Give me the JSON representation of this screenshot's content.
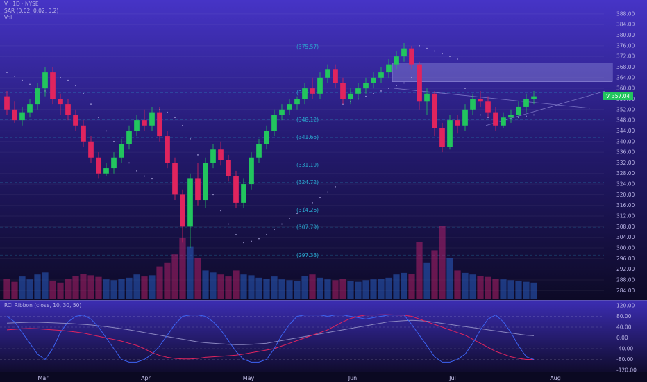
{
  "header": {
    "symbol_line": "V · 1D · NYSE",
    "sar_line": "SAR (0.02, 0.02, 0.2)",
    "vol_line": "Vol",
    "rci_line": "RCI Ribbon (close, 10, 30, 50)"
  },
  "price_badge": {
    "prefix": "V",
    "value": "357.04"
  },
  "colors": {
    "up": "#22c55e",
    "down": "#e0245e",
    "background_top": "#4a36c9",
    "background_bottom": "#0b0922",
    "fib": "#2aa9d0",
    "sar": "#b7b3e8",
    "zone": "#8a86d6",
    "rci_short": "#3d63f2",
    "rci_mid": "#e0245e",
    "rci_long": "#8a86c0"
  },
  "chart_data": {
    "type": "candlestick",
    "series": [
      {
        "name": "price",
        "values": [
          [
            357,
            359,
            350,
            352
          ],
          [
            352,
            355,
            347,
            348
          ],
          [
            348,
            353,
            346,
            351
          ],
          [
            351,
            356,
            349,
            354
          ],
          [
            354,
            362,
            352,
            360
          ],
          [
            360,
            368,
            357,
            366
          ],
          [
            366,
            368,
            354,
            356
          ],
          [
            356,
            358,
            350,
            354
          ],
          [
            354,
            356,
            348,
            350
          ],
          [
            350,
            352,
            344,
            346
          ],
          [
            346,
            348,
            338,
            340
          ],
          [
            340,
            342,
            332,
            334
          ],
          [
            334,
            336,
            326,
            328
          ],
          [
            328,
            332,
            327,
            330
          ],
          [
            330,
            336,
            328,
            334
          ],
          [
            334,
            341,
            332,
            339
          ],
          [
            339,
            346,
            337,
            344
          ],
          [
            344,
            350,
            342,
            348
          ],
          [
            348,
            352,
            344,
            346
          ],
          [
            346,
            353,
            344,
            351
          ],
          [
            351,
            353,
            340,
            342
          ],
          [
            342,
            344,
            330,
            332
          ],
          [
            332,
            334,
            318,
            320
          ],
          [
            320,
            322,
            302,
            308
          ],
          [
            308,
            328,
            300,
            326
          ],
          [
            326,
            332,
            316,
            318
          ],
          [
            318,
            334,
            315,
            332
          ],
          [
            332,
            339,
            330,
            337
          ],
          [
            337,
            340,
            331,
            333
          ],
          [
            333,
            335,
            325,
            327
          ],
          [
            327,
            329,
            315,
            317
          ],
          [
            317,
            326,
            315,
            324
          ],
          [
            324,
            336,
            322,
            334
          ],
          [
            334,
            341,
            332,
            339
          ],
          [
            339,
            346,
            337,
            344
          ],
          [
            344,
            352,
            342,
            350
          ],
          [
            350,
            354,
            348,
            352
          ],
          [
            352,
            356,
            350,
            354
          ],
          [
            354,
            357,
            352,
            356
          ],
          [
            356,
            362,
            354,
            360
          ],
          [
            360,
            364,
            356,
            358
          ],
          [
            358,
            366,
            356,
            364
          ],
          [
            364,
            369,
            362,
            367
          ],
          [
            367,
            369,
            360,
            362
          ],
          [
            362,
            364,
            354,
            356
          ],
          [
            356,
            360,
            354,
            358
          ],
          [
            358,
            362,
            356,
            360
          ],
          [
            360,
            364,
            358,
            362
          ],
          [
            362,
            366,
            360,
            364
          ],
          [
            364,
            368,
            362,
            366
          ],
          [
            366,
            371,
            364,
            369
          ],
          [
            369,
            374,
            367,
            372
          ],
          [
            372,
            377,
            370,
            375
          ],
          [
            375,
            376,
            367,
            369
          ],
          [
            369,
            370,
            352,
            355
          ],
          [
            355,
            360,
            350,
            358
          ],
          [
            358,
            359,
            342,
            345
          ],
          [
            345,
            347,
            336,
            338
          ],
          [
            338,
            350,
            337,
            348
          ],
          [
            348,
            350,
            343,
            346
          ],
          [
            346,
            354,
            344,
            352
          ],
          [
            352,
            358,
            350,
            356
          ],
          [
            356,
            359,
            353,
            355
          ],
          [
            355,
            357,
            349,
            351
          ],
          [
            351,
            353,
            344,
            346
          ],
          [
            346,
            351,
            345,
            349
          ],
          [
            349,
            352,
            347,
            350
          ],
          [
            350,
            355,
            349,
            353
          ],
          [
            353,
            358,
            351,
            356
          ],
          [
            356,
            359,
            354,
            357
          ]
        ]
      },
      {
        "name": "volume",
        "values": [
          5,
          4.2,
          5.5,
          4.8,
          6,
          6.5,
          4.5,
          4,
          5,
          5.6,
          6.2,
          5.8,
          5.4,
          4.8,
          4.6,
          5,
          5.2,
          6,
          5.5,
          5.8,
          8,
          9,
          11,
          15,
          13,
          10,
          7,
          6.5,
          6,
          5.5,
          7,
          6,
          5.8,
          5.2,
          5,
          5.5,
          4.8,
          4.6,
          4.4,
          5.6,
          6,
          5.2,
          4.8,
          4.6,
          5,
          4.4,
          4.2,
          4.6,
          4.8,
          5,
          5.2,
          6,
          6.4,
          6.2,
          14,
          9,
          12,
          18,
          10,
          7,
          6.4,
          6,
          5.6,
          5.4,
          5,
          4.8,
          4.6,
          4.4,
          4.2,
          4
        ]
      },
      {
        "name": "sar",
        "values": [
          366,
          364.5,
          363,
          361.5,
          360,
          359,
          358,
          364,
          363,
          361,
          358,
          354,
          349,
          344,
          340,
          336,
          332,
          329,
          327,
          326,
          352,
          351,
          349,
          346,
          341,
          335,
          327,
          320,
          314,
          309,
          305,
          302,
          302.5,
          303.5,
          305,
          307,
          309,
          311,
          313,
          315,
          317,
          319,
          321,
          323,
          354,
          355,
          356,
          357,
          358,
          359,
          360,
          361,
          362,
          364,
          376,
          375,
          374,
          373,
          372,
          371,
          360,
          352,
          350,
          349,
          348,
          348,
          348.5,
          349,
          349.5,
          350
        ]
      },
      {
        "name": "rci_short",
        "values": [
          80,
          60,
          20,
          -20,
          -60,
          -80,
          -40,
          20,
          60,
          80,
          85,
          70,
          40,
          0,
          -40,
          -80,
          -90,
          -90,
          -80,
          -60,
          -30,
          10,
          50,
          80,
          85,
          85,
          80,
          60,
          30,
          -10,
          -50,
          -80,
          -90,
          -90,
          -80,
          -40,
          10,
          50,
          80,
          85,
          85,
          85,
          80,
          85,
          85,
          80,
          75,
          70,
          75,
          80,
          85,
          85,
          85,
          50,
          10,
          -30,
          -70,
          -90,
          -90,
          -80,
          -60,
          -20,
          30,
          70,
          85,
          60,
          20,
          -30,
          -70,
          -80
        ]
      },
      {
        "name": "rci_mid",
        "values": [
          30,
          32,
          34,
          35,
          34,
          32,
          30,
          28,
          25,
          22,
          18,
          12,
          6,
          0,
          -6,
          -12,
          -20,
          -28,
          -40,
          -55,
          -65,
          -72,
          -76,
          -78,
          -78,
          -76,
          -72,
          -70,
          -68,
          -66,
          -64,
          -60,
          -55,
          -50,
          -45,
          -40,
          -30,
          -20,
          -10,
          0,
          10,
          20,
          30,
          45,
          60,
          72,
          80,
          85,
          85,
          86,
          86,
          85,
          84,
          80,
          70,
          60,
          50,
          40,
          30,
          20,
          10,
          -5,
          -20,
          -35,
          -50,
          -60,
          -70,
          -76,
          -80,
          -80
        ]
      },
      {
        "name": "rci_long",
        "values": [
          55,
          56,
          57,
          58,
          58,
          57,
          56,
          55,
          54,
          52,
          50,
          48,
          45,
          42,
          38,
          34,
          30,
          25,
          20,
          15,
          10,
          5,
          0,
          -5,
          -10,
          -15,
          -18,
          -20,
          -22,
          -24,
          -25,
          -25,
          -24,
          -22,
          -20,
          -15,
          -10,
          -5,
          0,
          5,
          10,
          15,
          20,
          25,
          30,
          35,
          40,
          45,
          50,
          55,
          60,
          62,
          64,
          65,
          64,
          62,
          58,
          54,
          50,
          46,
          42,
          38,
          34,
          30,
          26,
          22,
          18,
          14,
          10,
          8
        ]
      }
    ],
    "x_labels": [
      "Mar",
      "Apr",
      "May",
      "Jun",
      "Jul",
      "Aug"
    ],
    "y_ticks": [
      "388.00",
      "384.00",
      "380.00",
      "376.00",
      "372.00",
      "368.00",
      "364.00",
      "360.00",
      "356.00",
      "352.00",
      "348.00",
      "344.00",
      "340.00",
      "336.00",
      "332.00",
      "328.00",
      "324.00",
      "320.00",
      "316.00",
      "312.00",
      "308.00",
      "304.00",
      "300.00",
      "296.00",
      "292.00",
      "288.00",
      "284.00"
    ],
    "rci_ticks": [
      "120.00",
      "80.00",
      "40.00",
      "0.00",
      "-40.00",
      "-80.00",
      "-120.00"
    ],
    "y_range": [
      282,
      389
    ],
    "rci_range": [
      -120,
      120
    ],
    "fib_levels": [
      {
        "label": "(375.57)",
        "value": 375.57
      },
      {
        "label": "(358.3)",
        "value": 358.3
      },
      {
        "label": "(348.12)",
        "value": 348.12
      },
      {
        "label": "(341.65)",
        "value": 341.65
      },
      {
        "label": "(331.19)",
        "value": 331.19
      },
      {
        "label": "(324.72)",
        "value": 324.72
      },
      {
        "label": "(314.26)",
        "value": 314.26
      },
      {
        "label": "(307.79)",
        "value": 307.79
      },
      {
        "label": "(297.33)",
        "value": 297.33
      }
    ],
    "last_price": 357.04
  }
}
